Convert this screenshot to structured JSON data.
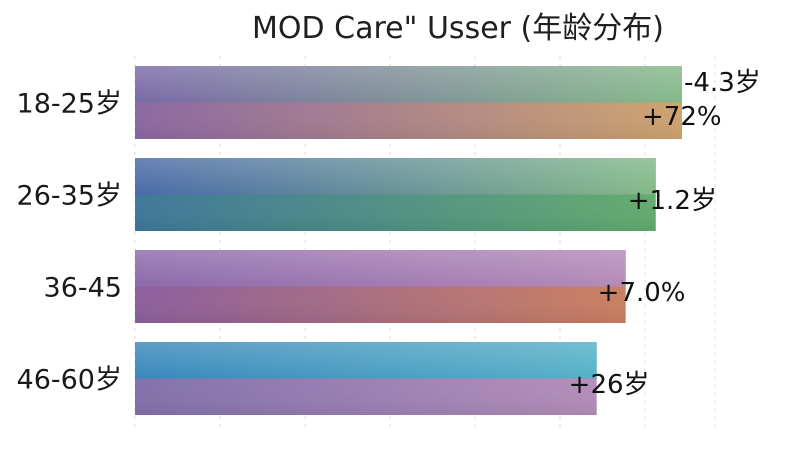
{
  "chart_data": {
    "type": "bar",
    "orientation": "horizontal",
    "title": "MOD Care\" Usser (年龄分布)",
    "xlabel": "",
    "ylabel": "",
    "categories": [
      "18-25岁",
      "26-35岁",
      "36-45",
      "46-60岁"
    ],
    "values": [
      100,
      95.2,
      89.7,
      84.4
    ],
    "xlim": [
      0,
      100
    ],
    "grid": true,
    "legend": "none",
    "annotations": [
      [
        "-4.3岁",
        "+72%"
      ],
      [
        "+1.2岁"
      ],
      [
        "+7.0%"
      ],
      [
        "+26岁"
      ]
    ],
    "bar_gradients": [
      {
        "top": [
          "#7a6aa6",
          "#86b98a"
        ],
        "bottom": [
          "#8c68a3",
          "#cfa46e"
        ]
      },
      {
        "top": [
          "#4b6aa8",
          "#84b987"
        ],
        "bottom": [
          "#3f789a",
          "#64ac6e"
        ]
      },
      {
        "top": [
          "#8c6aaa",
          "#b48ab8"
        ],
        "bottom": [
          "#8c5f9e",
          "#cc8060"
        ]
      },
      {
        "top": [
          "#3a88bb",
          "#55b1c8"
        ],
        "bottom": [
          "#8272ac",
          "#b58eba"
        ]
      }
    ]
  }
}
